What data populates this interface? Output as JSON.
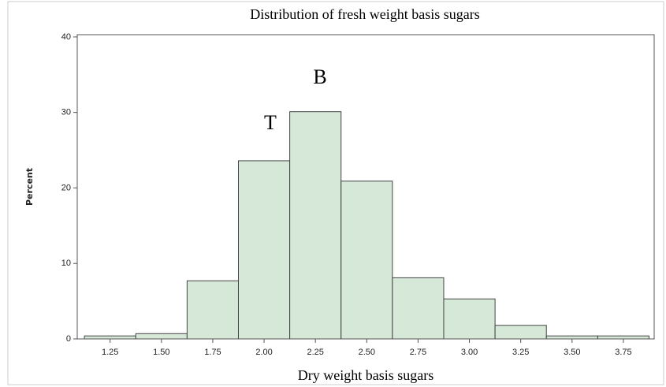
{
  "chart_data": {
    "type": "histogram",
    "title": "Distribution of fresh weight basis sugars",
    "x_label": "Dry weight basis sugars",
    "y_label": "Percent",
    "annotations": [
      "T",
      "B"
    ],
    "bins": [
      1.125,
      1.375,
      1.625,
      1.875,
      2.125,
      2.375,
      2.625,
      2.875,
      3.125,
      3.375,
      3.625,
      3.875
    ],
    "counts": [
      0.4,
      0.7,
      7.7,
      23.6,
      30.1,
      20.9,
      8.1,
      5.3,
      1.8,
      0.4,
      0.4
    ],
    "color": "#d6e8d8",
    "edge_color": "#444444",
    "xlim": [
      1.09,
      3.9
    ],
    "ylim": [
      0,
      40.3
    ],
    "xticks": [
      1.25,
      {
        "value": 1.5,
        "label": "1.50"
      },
      1.75,
      {
        "value": 2,
        "label": "2.00"
      },
      2.25,
      {
        "value": 2.5,
        "label": "2.50"
      },
      2.75,
      {
        "value": 3,
        "label": "3.00"
      },
      3.25,
      {
        "value": 3.5,
        "label": "3.50"
      },
      3.75
    ],
    "yticks": [
      0,
      10,
      20,
      30,
      40
    ]
  }
}
